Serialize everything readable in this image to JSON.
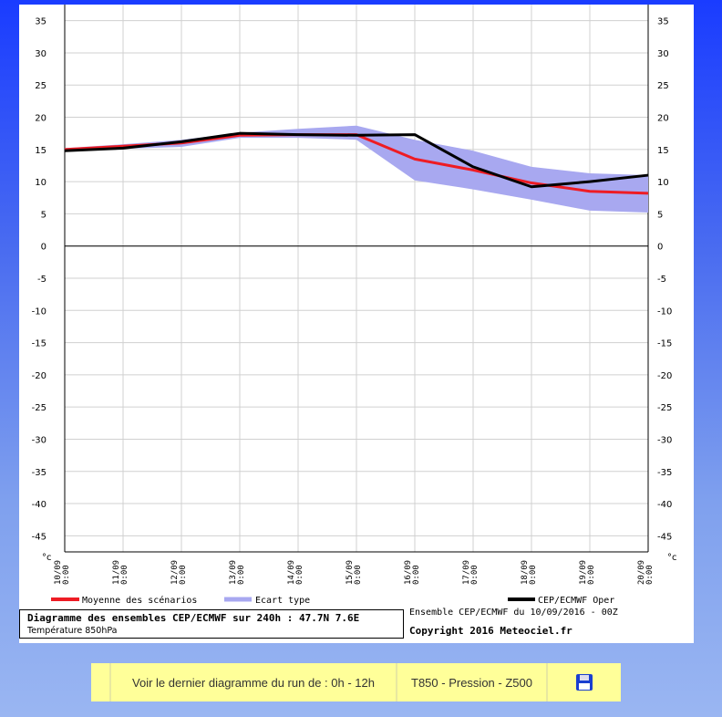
{
  "chart_data": {
    "type": "line",
    "x": [
      "10/09\n0:00",
      "11/09\n0:00",
      "12/09\n0:00",
      "13/09\n0:00",
      "14/09\n0:00",
      "15/09\n0:00",
      "16/09\n0:00",
      "17/09\n0:00",
      "18/09\n0:00",
      "19/09\n0:00",
      "20/09\n0:00"
    ],
    "ylim": [
      -47.5,
      37.5
    ],
    "yticks": [
      35,
      30,
      25,
      20,
      15,
      10,
      5,
      0,
      -5,
      -10,
      -15,
      -20,
      -25,
      -30,
      -35,
      -40,
      -45
    ],
    "yunit": "°c",
    "grid": true,
    "series": [
      {
        "name": "Moyenne des scénarios",
        "color": "#ee1c24",
        "values": [
          15.0,
          15.5,
          16.0,
          17.2,
          17.3,
          17.3,
          13.5,
          11.8,
          9.8,
          8.5,
          8.2
        ]
      },
      {
        "name": "CEP/ECMWF Oper",
        "color": "#000000",
        "values": [
          14.8,
          15.2,
          16.2,
          17.5,
          17.3,
          17.2,
          17.3,
          12.3,
          9.2,
          10.0,
          11.0
        ]
      }
    ],
    "band": {
      "name": "Ecart type",
      "color": "#a8a8f0",
      "upper": [
        15.2,
        15.8,
        16.5,
        17.6,
        18.2,
        18.7,
        16.5,
        14.8,
        12.3,
        11.3,
        11.0
      ],
      "lower": [
        14.8,
        15.1,
        15.4,
        16.8,
        16.8,
        16.5,
        10.2,
        8.8,
        7.2,
        5.5,
        5.2
      ]
    }
  },
  "legend": {
    "mean_label": "Moyenne des scénarios",
    "band_label": "Ecart type",
    "oper_label": "CEP/ECMWF Oper"
  },
  "info": {
    "title": "Diagramme des ensembles CEP/ECMWF sur 240h : 47.7N 7.6E",
    "subtitle": "Température 850hPa",
    "ensemble": "Ensemble CEP/ECMWF du 10/09/2016 - 00Z",
    "copyright": "Copyright 2016 Meteociel.fr"
  },
  "toolbar": {
    "run_label": "Voir le dernier diagramme du run de : 0h - 12h",
    "params_label": "T850 - Pression - Z500",
    "save_icon": "floppy-disk-icon"
  },
  "colors": {
    "background_top": "#1a3cff",
    "bar_bg": "#ffff99"
  }
}
